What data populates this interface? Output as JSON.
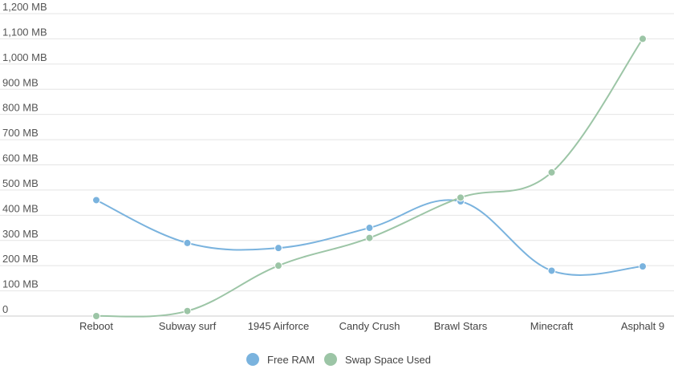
{
  "chart_data": {
    "type": "line",
    "title": "",
    "xlabel": "",
    "ylabel": "",
    "categories": [
      "Reboot",
      "Subway surf",
      "1945 Airforce",
      "Candy Crush",
      "Brawl Stars",
      "Minecraft",
      "Asphalt 9"
    ],
    "y_ticks": [
      "0",
      "100 MB",
      "200 MB",
      "300 MB",
      "400 MB",
      "500 MB",
      "600 MB",
      "700 MB",
      "800 MB",
      "900 MB",
      "1,000 MB",
      "1,100 MB",
      "1,200 MB"
    ],
    "ylim": [
      0,
      1200
    ],
    "grid": true,
    "legend_position": "bottom",
    "series": [
      {
        "name": "Free RAM",
        "color": "#7ab3de",
        "values": [
          460,
          290,
          270,
          350,
          455,
          180,
          197
        ]
      },
      {
        "name": "Swap Space Used",
        "color": "#9cc5a6",
        "values": [
          0,
          20,
          200,
          310,
          470,
          570,
          1100
        ]
      }
    ]
  }
}
